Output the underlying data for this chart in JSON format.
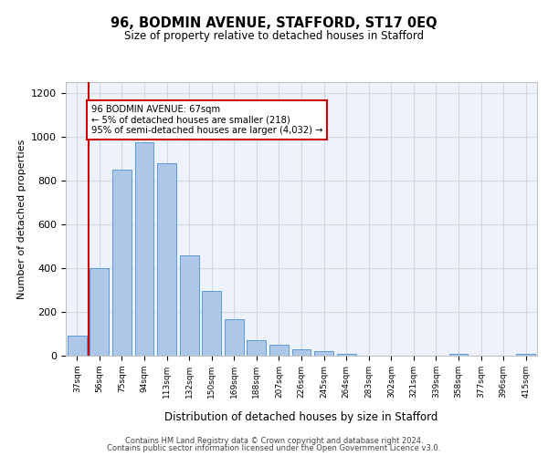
{
  "title": "96, BODMIN AVENUE, STAFFORD, ST17 0EQ",
  "subtitle": "Size of property relative to detached houses in Stafford",
  "xlabel": "Distribution of detached houses by size in Stafford",
  "ylabel": "Number of detached properties",
  "categories": [
    "37sqm",
    "56sqm",
    "75sqm",
    "94sqm",
    "113sqm",
    "132sqm",
    "150sqm",
    "169sqm",
    "188sqm",
    "207sqm",
    "226sqm",
    "245sqm",
    "264sqm",
    "283sqm",
    "302sqm",
    "321sqm",
    "339sqm",
    "358sqm",
    "377sqm",
    "396sqm",
    "415sqm"
  ],
  "values": [
    90,
    400,
    850,
    975,
    880,
    460,
    295,
    165,
    70,
    50,
    30,
    22,
    8,
    0,
    0,
    0,
    0,
    10,
    0,
    0,
    10
  ],
  "bar_color": "#aec6e8",
  "bar_edge_color": "#5b9bd5",
  "grid_color": "#d0d8e8",
  "background_color": "#eef2fa",
  "vline_x_index": 1,
  "vline_color": "#cc0000",
  "annotation_text": "96 BODMIN AVENUE: 67sqm\n← 5% of detached houses are smaller (218)\n95% of semi-detached houses are larger (4,032) →",
  "annotation_box_color": "#ffffff",
  "annotation_box_edge": "#cc0000",
  "ylim": [
    0,
    1250
  ],
  "yticks": [
    0,
    200,
    400,
    600,
    800,
    1000,
    1200
  ],
  "footer_line1": "Contains HM Land Registry data © Crown copyright and database right 2024.",
  "footer_line2": "Contains public sector information licensed under the Open Government Licence v3.0."
}
